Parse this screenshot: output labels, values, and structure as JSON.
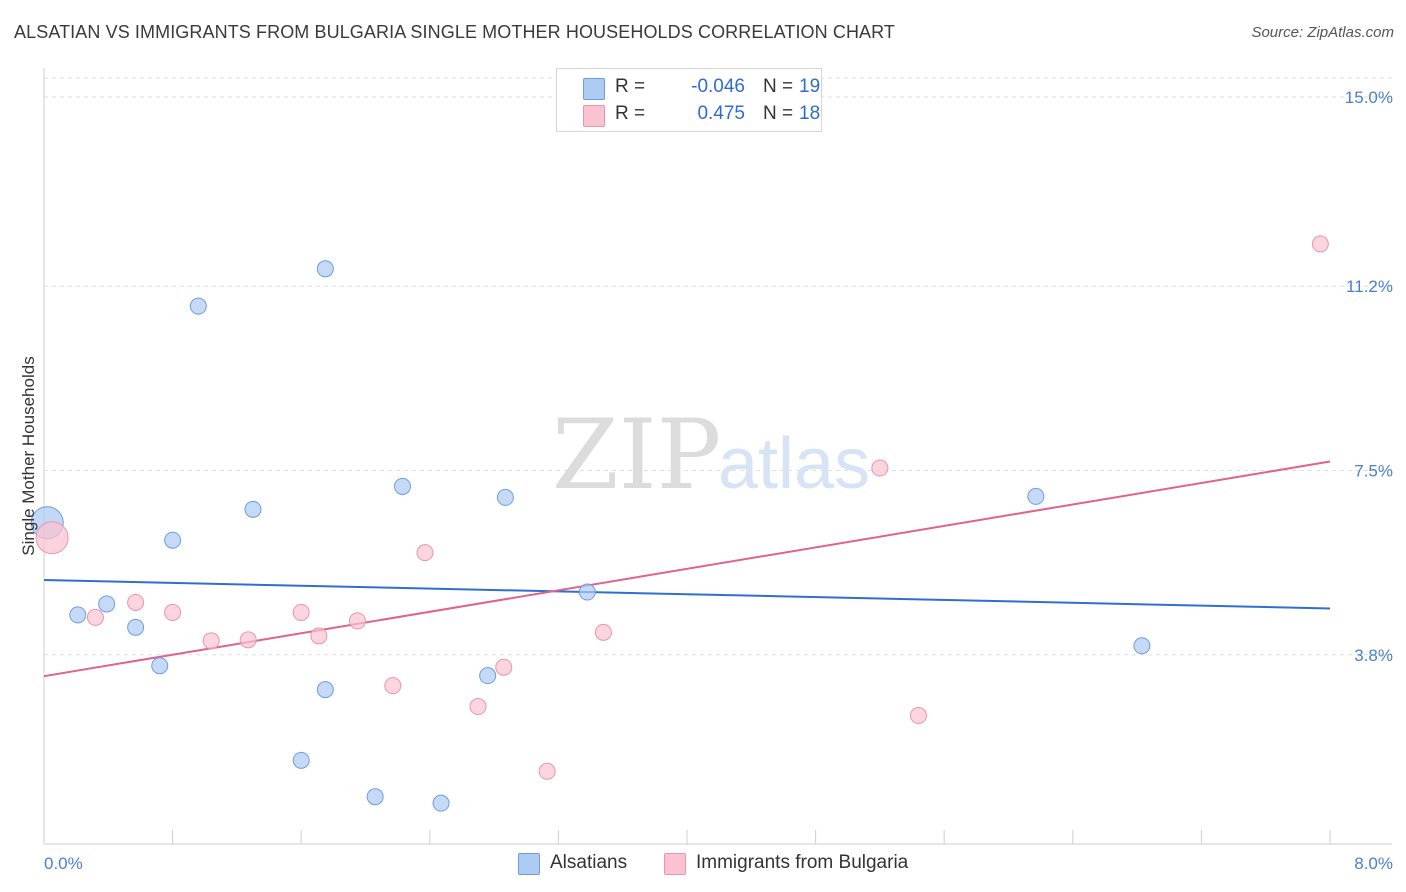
{
  "header": {
    "title": "ALSATIAN VS IMMIGRANTS FROM BULGARIA SINGLE MOTHER HOUSEHOLDS CORRELATION CHART",
    "source": "Source: ZipAtlas.com"
  },
  "watermark": {
    "zip": "ZIP",
    "atlas": "atlas"
  },
  "legend": {
    "rows": [
      {
        "r_label": "R =",
        "r_value": "-0.046",
        "n_label": "N =",
        "n_value": "19",
        "color": "#aecbf3"
      },
      {
        "r_label": "R =",
        "r_value": "0.475",
        "n_label": "N =",
        "n_value": "18",
        "color": "#f9c3d2"
      }
    ]
  },
  "bottom_legend": {
    "items": [
      {
        "label": "Alsatians",
        "color": "#aecbf3"
      },
      {
        "label": "Immigrants from Bulgaria",
        "color": "#f9c3d2"
      }
    ]
  },
  "chart_data": {
    "type": "scatter",
    "title": "ALSATIAN VS IMMIGRANTS FROM BULGARIA SINGLE MOTHER HOUSEHOLDS CORRELATION CHART",
    "xlabel": "",
    "ylabel": "Single Mother Households",
    "xlim": [
      0,
      8.0
    ],
    "ylim": [
      0,
      15.0
    ],
    "x_tick_labels": [
      "0.0%",
      "8.0%"
    ],
    "y_ticks": [
      {
        "value": 3.8,
        "label": "3.8%"
      },
      {
        "value": 7.5,
        "label": "7.5%"
      },
      {
        "value": 11.2,
        "label": "11.2%"
      },
      {
        "value": 15.0,
        "label": "15.0%"
      }
    ],
    "x_minor_ticks": [
      0.8,
      1.6,
      2.4,
      3.2,
      4.0,
      4.8,
      5.6,
      6.4,
      7.2,
      8.0
    ],
    "grid": true,
    "series": [
      {
        "name": "Alsatians",
        "color": "#aecbf3",
        "stroke": "#6b9ee0",
        "line_color": "#2f6fcf",
        "trend": {
          "x0": 0.0,
          "y0": 5.3,
          "x1": 8.0,
          "y1": 4.73
        },
        "points": [
          {
            "x": 0.02,
            "y": 6.45,
            "big": true
          },
          {
            "x": 0.21,
            "y": 4.6
          },
          {
            "x": 0.39,
            "y": 4.82
          },
          {
            "x": 0.57,
            "y": 4.35
          },
          {
            "x": 0.72,
            "y": 3.58
          },
          {
            "x": 0.8,
            "y": 6.1
          },
          {
            "x": 0.96,
            "y": 10.8
          },
          {
            "x": 1.3,
            "y": 6.72
          },
          {
            "x": 1.6,
            "y": 1.68
          },
          {
            "x": 1.75,
            "y": 3.1
          },
          {
            "x": 1.75,
            "y": 11.55
          },
          {
            "x": 2.06,
            "y": 0.95
          },
          {
            "x": 2.23,
            "y": 7.18
          },
          {
            "x": 2.47,
            "y": 0.82
          },
          {
            "x": 2.76,
            "y": 3.38
          },
          {
            "x": 2.87,
            "y": 6.96
          },
          {
            "x": 3.38,
            "y": 5.06
          },
          {
            "x": 6.17,
            "y": 6.98
          },
          {
            "x": 6.83,
            "y": 3.98
          }
        ]
      },
      {
        "name": "Immigrants from Bulgaria",
        "color": "#f9c3d2",
        "stroke": "#ec93ad",
        "line_color": "#e0628d",
        "trend": {
          "x0": 0.0,
          "y0": 3.37,
          "x1": 8.0,
          "y1": 7.68
        },
        "points": [
          {
            "x": 0.05,
            "y": 6.15,
            "big": true
          },
          {
            "x": 0.32,
            "y": 4.55
          },
          {
            "x": 0.57,
            "y": 4.85
          },
          {
            "x": 0.8,
            "y": 4.65
          },
          {
            "x": 1.04,
            "y": 4.08
          },
          {
            "x": 1.27,
            "y": 4.1
          },
          {
            "x": 1.6,
            "y": 4.65
          },
          {
            "x": 1.71,
            "y": 4.18
          },
          {
            "x": 1.95,
            "y": 4.48
          },
          {
            "x": 2.17,
            "y": 3.18
          },
          {
            "x": 2.37,
            "y": 5.85
          },
          {
            "x": 2.7,
            "y": 2.76
          },
          {
            "x": 2.86,
            "y": 3.55
          },
          {
            "x": 3.13,
            "y": 1.46
          },
          {
            "x": 3.48,
            "y": 4.25
          },
          {
            "x": 5.2,
            "y": 7.55
          },
          {
            "x": 5.44,
            "y": 2.58
          },
          {
            "x": 7.94,
            "y": 12.05
          }
        ]
      }
    ]
  }
}
